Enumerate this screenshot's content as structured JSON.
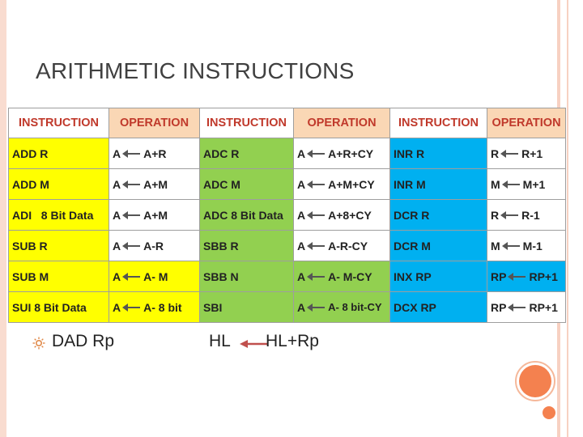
{
  "slide": {
    "title": "ARITHMETIC INSTRUCTIONS"
  },
  "table": {
    "headers": [
      "INSTRUCTION",
      "OPERATION",
      "INSTRUCTION",
      "OPERATION",
      "INSTRUCTION",
      "OPERATION"
    ],
    "rows": [
      [
        {
          "instr": "ADD R",
          "dst": "A",
          "src": "A+R"
        },
        {
          "instr": "ADC R",
          "dst": "A",
          "src": "A+R+CY"
        },
        {
          "instr": "INR R",
          "dst": "R",
          "src": "R+1"
        }
      ],
      [
        {
          "instr": "ADD M",
          "dst": "A",
          "src": "A+M"
        },
        {
          "instr": "ADC M",
          "dst": "A",
          "src": "A+M+CY"
        },
        {
          "instr": "INR M",
          "dst": "M",
          "src": "M+1"
        }
      ],
      [
        {
          "instr": "ADI   8 Bit Data",
          "dst": "A",
          "src": "A+M"
        },
        {
          "instr": "ADC 8 Bit Data",
          "dst": "A",
          "src": "A+8+CY"
        },
        {
          "instr": "DCR R",
          "dst": "R",
          "src": "R-1"
        }
      ],
      [
        {
          "instr": "SUB R",
          "dst": "A",
          "src": "A-R"
        },
        {
          "instr": "SBB R",
          "dst": "A",
          "src": "A-R-CY"
        },
        {
          "instr": "DCR M",
          "dst": "M",
          "src": "M-1"
        }
      ],
      [
        {
          "instr": "SUB M",
          "dst": "A",
          "src": "A- M"
        },
        {
          "instr": "SBB N",
          "dst": "A",
          "src": "A- M-CY"
        },
        {
          "instr": "INX RP",
          "dst": "RP",
          "src": "RP+1"
        }
      ],
      [
        {
          "instr": "SUI 8 Bit Data",
          "dst": "A",
          "src": "A- 8 bit"
        },
        {
          "instr": "SBI",
          "dst": "A",
          "src": "A- 8 bit-CY"
        },
        {
          "instr": "DCX RP",
          "dst": "RP",
          "src": "RP+1"
        }
      ]
    ]
  },
  "bullet": {
    "instruction": "DAD Rp",
    "dst": "HL",
    "src": "HL+Rp"
  },
  "colors": {
    "header": "#fad7b5",
    "group1": "#ffff00",
    "group2": "#92d050",
    "group3": "#00b0f0",
    "accent": "#f4814f",
    "header_text": "#c0392b"
  },
  "icons": {
    "bullet": "sun-bullet-icon",
    "arrow": "left-arrow-icon"
  }
}
